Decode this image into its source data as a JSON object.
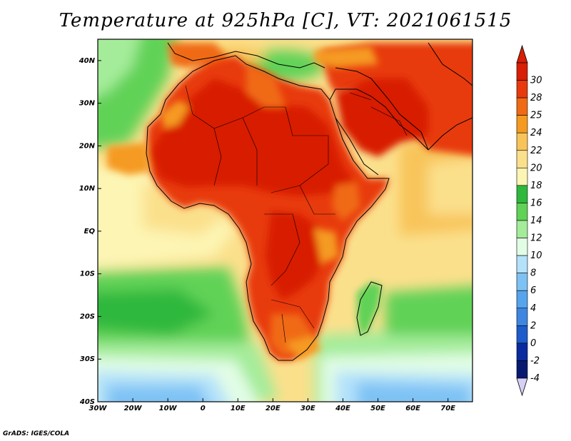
{
  "title": "Temperature at 925hPa [C], VT: 2021061515",
  "credit": "GrADS: IGES/COLA",
  "map": {
    "lon_range": [
      -30,
      77
    ],
    "lat_range": [
      -40,
      45
    ],
    "lon_ticks": [
      {
        "value": -30,
        "label": "30W"
      },
      {
        "value": -20,
        "label": "20W"
      },
      {
        "value": -10,
        "label": "10W"
      },
      {
        "value": 0,
        "label": "0"
      },
      {
        "value": 10,
        "label": "10E"
      },
      {
        "value": 20,
        "label": "20E"
      },
      {
        "value": 30,
        "label": "30E"
      },
      {
        "value": 40,
        "label": "40E"
      },
      {
        "value": 50,
        "label": "50E"
      },
      {
        "value": 60,
        "label": "60E"
      },
      {
        "value": 70,
        "label": "70E"
      }
    ],
    "lat_ticks": [
      {
        "value": 40,
        "label": "40N"
      },
      {
        "value": 30,
        "label": "30N"
      },
      {
        "value": 20,
        "label": "20N"
      },
      {
        "value": 10,
        "label": "10N"
      },
      {
        "value": 0,
        "label": "EQ"
      },
      {
        "value": -10,
        "label": "10S"
      },
      {
        "value": -20,
        "label": "20S"
      },
      {
        "value": -30,
        "label": "30S"
      },
      {
        "value": -40,
        "label": "40S"
      }
    ]
  },
  "colorbar": {
    "bins": [
      {
        "color": "#d81e05",
        "label": "30"
      },
      {
        "color": "#e83a0c",
        "label": "28"
      },
      {
        "color": "#f06a14",
        "label": "25"
      },
      {
        "color": "#f59a20",
        "label": "24"
      },
      {
        "color": "#f8c45a",
        "label": "22"
      },
      {
        "color": "#fbe08c",
        "label": "20"
      },
      {
        "color": "#fdf5b4",
        "label": "18"
      },
      {
        "color": "#2eb83c",
        "label": "16"
      },
      {
        "color": "#60d256",
        "label": "14"
      },
      {
        "color": "#a4ec9a",
        "label": "12"
      },
      {
        "color": "#e2fde6",
        "label": "10"
      },
      {
        "color": "#b4e2fa",
        "label": "8"
      },
      {
        "color": "#7ec2f4",
        "label": "6"
      },
      {
        "color": "#56a4ec",
        "label": "4"
      },
      {
        "color": "#3e86e0",
        "label": "2"
      },
      {
        "color": "#1e5ccc",
        "label": "0"
      },
      {
        "color": "#0a2aa0",
        "label": "-2"
      },
      {
        "color": "#081a70",
        "label": "-4"
      }
    ],
    "top_color": "#d81e05",
    "bottom_color": "#d6d0f6"
  }
}
